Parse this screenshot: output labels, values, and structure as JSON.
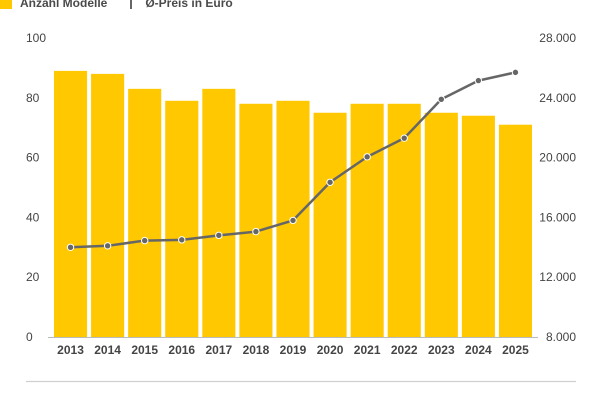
{
  "legend": {
    "bars_label": "Anzahl Modelle",
    "line_label": "Ø-Preis in Euro"
  },
  "colors": {
    "bar": "#ffc800",
    "line": "#666666",
    "axis": "#444444",
    "grid": "#eeeeee",
    "footer_rule": "#cfcfcf"
  },
  "chart_data": {
    "type": "bar",
    "title": "",
    "xlabel": "",
    "ylabel": "",
    "categories": [
      "2013",
      "2014",
      "2015",
      "2016",
      "2017",
      "2018",
      "2019",
      "2020",
      "2021",
      "2022",
      "2023",
      "2024",
      "2025"
    ],
    "series": [
      {
        "name": "Anzahl Modelle",
        "type": "bar",
        "axis": "left",
        "values": [
          89,
          88,
          83,
          79,
          83,
          78,
          79,
          75,
          78,
          78,
          75,
          74,
          71
        ]
      },
      {
        "name": "Ø-Preis in Euro",
        "type": "line",
        "axis": "right",
        "values": [
          14000,
          14100,
          14450,
          14500,
          14800,
          15050,
          15800,
          18350,
          20050,
          21300,
          23900,
          25150,
          25700
        ]
      }
    ],
    "y_left": {
      "lim": [
        0,
        100
      ],
      "ticks": [
        0,
        20,
        40,
        60,
        80,
        100
      ],
      "tick_labels": [
        "0",
        "20",
        "40",
        "60",
        "80",
        "100"
      ]
    },
    "y_right": {
      "lim": [
        8000,
        28000
      ],
      "ticks": [
        8000,
        12000,
        16000,
        20000,
        24000,
        28000
      ],
      "tick_labels": [
        "8.000",
        "12.000",
        "16.000",
        "20.000",
        "24.000",
        "28.000"
      ]
    },
    "grid": false,
    "legend_position": "top-left"
  }
}
